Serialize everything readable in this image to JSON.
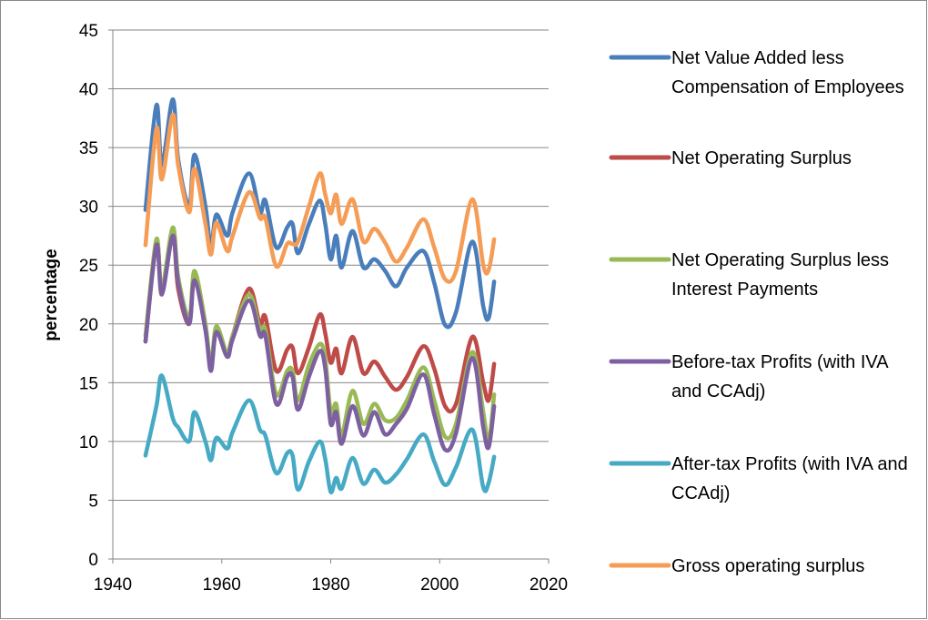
{
  "chart_data": {
    "type": "line",
    "y_label": "percentage",
    "x": [
      1946,
      1948,
      1949,
      1951,
      1952,
      1954,
      1955,
      1957,
      1958,
      1959,
      1961,
      1962,
      1965,
      1967,
      1968,
      1970,
      1972,
      1973,
      1974,
      1976,
      1978,
      1979,
      1980,
      1981,
      1982,
      1984,
      1986,
      1988,
      1990,
      1992,
      1994,
      1997,
      1999,
      2001,
      2003,
      2006,
      2008,
      2009,
      2010
    ],
    "series": [
      {
        "name": "Net Value Added less Compensation of Employees",
        "color": "#4a7ebb",
        "values": [
          29.7,
          38.6,
          33.5,
          39.1,
          34,
          30,
          34.4,
          30,
          26.5,
          29.3,
          27.5,
          29.5,
          32.8,
          29.5,
          30.5,
          26.5,
          28.2,
          28.5,
          26,
          28.5,
          30.5,
          28.5,
          25.5,
          27.5,
          24.8,
          27.9,
          24.8,
          25.5,
          24.5,
          23.2,
          24.8,
          26.2,
          23.5,
          19.9,
          21,
          27,
          21.5,
          20.5,
          23.6
        ]
      },
      {
        "name": "Net Operating Surplus",
        "color": "#be4b48",
        "values": [
          18.5,
          27,
          22.8,
          27.5,
          23,
          20,
          24.2,
          19.5,
          16.5,
          19.3,
          17.5,
          19,
          23,
          20,
          20.6,
          16,
          17.8,
          18,
          15.8,
          18,
          20.8,
          19.2,
          16.7,
          17.9,
          15.8,
          18.9,
          15.8,
          16.8,
          15.5,
          14.4,
          15.5,
          18.1,
          16.2,
          13,
          13.2,
          18.9,
          15,
          13.5,
          16.6
        ]
      },
      {
        "name": "Net Operating Surplus less Interest Payments",
        "color": "#98b954",
        "values": [
          19,
          27.2,
          23,
          28.2,
          24,
          20.5,
          24.5,
          20,
          16.5,
          19.8,
          17.5,
          19,
          22.5,
          19.5,
          19.5,
          14,
          16,
          16,
          13.5,
          16.5,
          18.3,
          17,
          12.5,
          13.2,
          10.5,
          14.3,
          11.5,
          13.2,
          11.8,
          12,
          13.5,
          16.3,
          13.5,
          10.4,
          11.5,
          17.6,
          12.5,
          10,
          14
        ]
      },
      {
        "name": "Before-tax Profits (with IVA and CCAdj)",
        "color": "#7d60a0",
        "values": [
          18.5,
          26.7,
          22.5,
          27.5,
          23.5,
          20,
          23.7,
          19.5,
          16,
          19.3,
          17.2,
          18.7,
          22,
          19,
          19,
          13.2,
          15.5,
          15.5,
          12.7,
          15.5,
          17.7,
          16.2,
          11.5,
          12.5,
          9.8,
          13,
          10.5,
          12.5,
          10.6,
          11.5,
          12.8,
          15.7,
          12.3,
          9.3,
          10.7,
          17.1,
          11.2,
          9.5,
          13
        ]
      },
      {
        "name": "After-tax Profits (with IVA and CCAdj)",
        "color": "#46aac5",
        "values": [
          8.8,
          13,
          15.6,
          12,
          11.2,
          10,
          12.5,
          10,
          8.4,
          10.3,
          9.4,
          10.8,
          13.5,
          11,
          10.5,
          7.3,
          9,
          8.8,
          5.9,
          8.3,
          10,
          8.5,
          5.7,
          6.9,
          6,
          8.6,
          6.4,
          7.6,
          6.5,
          7.2,
          8.5,
          10.6,
          8.3,
          6.3,
          7.8,
          11,
          6.1,
          6.5,
          8.7
        ]
      },
      {
        "name": "Gross operating surplus",
        "color": "#f59d56",
        "values": [
          26.7,
          36.6,
          32.3,
          37.8,
          33.5,
          29.5,
          33.2,
          28.5,
          25.9,
          28.6,
          26.2,
          27.5,
          31.2,
          29,
          29,
          24.9,
          26.8,
          26.8,
          27,
          30,
          32.8,
          31,
          29.4,
          31,
          28.5,
          30.6,
          27,
          28.1,
          26.9,
          25.3,
          26.5,
          28.9,
          26.5,
          23.8,
          24.5,
          30.6,
          25,
          24.6,
          27.2
        ]
      }
    ],
    "xlim": [
      1940,
      2020
    ],
    "xticks": [
      1940,
      1960,
      1980,
      2000,
      2020
    ],
    "ylim": [
      0,
      45
    ],
    "yticks": [
      0,
      5,
      10,
      15,
      20,
      25,
      30,
      35,
      40,
      45
    ],
    "grid": true
  }
}
